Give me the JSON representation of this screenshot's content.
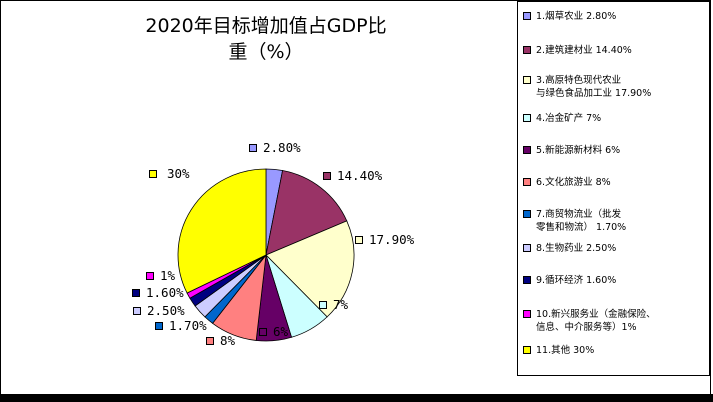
{
  "chart_data": {
    "type": "pie",
    "title_lines": [
      "2020年目标增加值占GDP比",
      "重（%）"
    ],
    "slices": [
      {
        "legend": "1.烟草农业  2.80%",
        "label": "2.80%",
        "value": 2.8,
        "color": "#9999ff"
      },
      {
        "legend": "2.建筑建材业  14.40%",
        "label": "14.40%",
        "value": 14.4,
        "color": "#993366"
      },
      {
        "legend": "3.高原特色现代农业\n与绿色食品加工业  17.90%",
        "label": "17.90%",
        "value": 17.9,
        "color": "#ffffcc"
      },
      {
        "legend": "4.冶金矿产  7%",
        "label": "7%",
        "value": 7,
        "color": "#ccffff"
      },
      {
        "legend": "5.新能源新材料  6%",
        "label": "6%",
        "value": 6,
        "color": "#660066"
      },
      {
        "legend": "6.文化旅游业  8%",
        "label": "8%",
        "value": 8,
        "color": "#ff8080"
      },
      {
        "legend": "7.商贸物流业（批发\n零售和物流） 1.70%",
        "label": "1.70%",
        "value": 1.7,
        "color": "#0066cc"
      },
      {
        "legend": "8.生物药业  2.50%",
        "label": "2.50%",
        "value": 2.5,
        "color": "#ccccff"
      },
      {
        "legend": "9.循环经济  1.60%",
        "label": "1.60%",
        "value": 1.6,
        "color": "#000080"
      },
      {
        "legend": "10.新兴服务业（金融保险、\n信息、中介服务等）1%",
        "label": "1%",
        "value": 1,
        "color": "#ff00ff"
      },
      {
        "legend": "11.其他  30%",
        "label": "30%",
        "value": 30,
        "color": "#ffff00"
      }
    ],
    "start_angle_deg": 0,
    "direction": "clockwise",
    "legend_position": "right"
  }
}
